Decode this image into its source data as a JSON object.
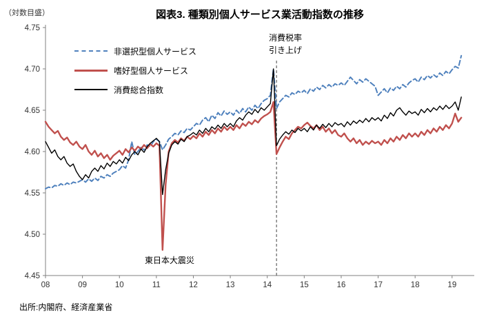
{
  "title": "図表3. 種類別個人サービス業活動指数の推移",
  "y_unit_label": "（対数目盛）",
  "source": "出所:内閣府、経済産業省",
  "annotations": {
    "tax_line": "消費税率\n引き上げ",
    "earthquake": "東日本大震災"
  },
  "legend": [
    {
      "label": "非選択型個人サービス",
      "color": "#4f81bd",
      "style": "dashed"
    },
    {
      "label": "嗜好型個人サービス",
      "color": "#c0504d",
      "style": "solid"
    },
    {
      "label": "消費総合指数",
      "color": "#000000",
      "style": "solid"
    }
  ],
  "chart_data": {
    "type": "line",
    "title": "図表3. 種類別個人サービス業活動指数の推移",
    "ylabel": "（対数目盛）",
    "xlabel": "",
    "grid": false,
    "legend_position": "upper-left-inside",
    "xlim": [
      2008,
      2019.6
    ],
    "ylim": [
      4.45,
      4.75
    ],
    "y_ticks": [
      4.45,
      4.5,
      4.55,
      4.6,
      4.65,
      4.7,
      4.75
    ],
    "x_tick_years": [
      2008,
      2009,
      2010,
      2011,
      2012,
      2013,
      2014,
      2015,
      2016,
      2017,
      2018,
      2019
    ],
    "x_tick_labels": [
      "08",
      "09",
      "10",
      "11",
      "12",
      "13",
      "14",
      "15",
      "16",
      "17",
      "18",
      "19"
    ],
    "x_start_year": 2008,
    "x_interval": "monthly",
    "event_lines": [
      {
        "x": 2014.25,
        "label": "消費税率引き上げ",
        "style": "dashed"
      }
    ],
    "event_labels": [
      {
        "x": 2011.2,
        "y": 4.468,
        "label": "東日本大震災"
      }
    ],
    "series": [
      {
        "name": "非選択型個人サービス",
        "color": "#4f81bd",
        "dash": true,
        "width": 2,
        "values": [
          4.555,
          4.557,
          4.556,
          4.559,
          4.558,
          4.561,
          4.559,
          4.562,
          4.56,
          4.563,
          4.562,
          4.564,
          4.566,
          4.563,
          4.567,
          4.564,
          4.568,
          4.565,
          4.57,
          4.568,
          4.572,
          4.57,
          4.574,
          4.576,
          4.578,
          4.583,
          4.58,
          4.59,
          4.612,
          4.596,
          4.6,
          4.605,
          4.602,
          4.608,
          4.606,
          4.612,
          4.615,
          4.612,
          4.602,
          4.608,
          4.615,
          4.618,
          4.622,
          4.62,
          4.625,
          4.623,
          4.628,
          4.626,
          4.63,
          4.634,
          4.632,
          4.638,
          4.641,
          4.636,
          4.644,
          4.64,
          4.647,
          4.643,
          4.649,
          4.645,
          4.648,
          4.644,
          4.65,
          4.646,
          4.652,
          4.648,
          4.654,
          4.65,
          4.656,
          4.652,
          4.658,
          4.662,
          4.664,
          4.668,
          4.7,
          4.652,
          4.66,
          4.664,
          4.668,
          4.666,
          4.671,
          4.669,
          4.673,
          4.671,
          4.674,
          4.67,
          4.676,
          4.673,
          4.678,
          4.675,
          4.68,
          4.677,
          4.681,
          4.678,
          4.682,
          4.68,
          4.683,
          4.68,
          4.685,
          4.69,
          4.686,
          4.682,
          4.687,
          4.684,
          4.688,
          4.685,
          4.682,
          4.679,
          4.668,
          4.672,
          4.676,
          4.671,
          4.677,
          4.674,
          4.679,
          4.676,
          4.681,
          4.678,
          4.683,
          4.686,
          4.688,
          4.684,
          4.69,
          4.687,
          4.692,
          4.689,
          4.693,
          4.69,
          4.695,
          4.692,
          4.697,
          4.694,
          4.699,
          4.703,
          4.701,
          4.716
        ]
      },
      {
        "name": "嗜好型個人サービス",
        "color": "#c0504d",
        "dash": false,
        "width": 2.4,
        "values": [
          4.636,
          4.63,
          4.626,
          4.622,
          4.625,
          4.618,
          4.614,
          4.617,
          4.611,
          4.608,
          4.612,
          4.606,
          4.603,
          4.608,
          4.6,
          4.596,
          4.601,
          4.594,
          4.598,
          4.592,
          4.596,
          4.59,
          4.595,
          4.598,
          4.601,
          4.596,
          4.603,
          4.599,
          4.605,
          4.601,
          4.606,
          4.603,
          4.608,
          4.604,
          4.609,
          4.606,
          4.61,
          4.607,
          4.481,
          4.56,
          4.6,
          4.61,
          4.614,
          4.611,
          4.616,
          4.613,
          4.618,
          4.615,
          4.619,
          4.616,
          4.622,
          4.618,
          4.624,
          4.62,
          4.626,
          4.622,
          4.628,
          4.624,
          4.63,
          4.626,
          4.63,
          4.626,
          4.632,
          4.628,
          4.634,
          4.631,
          4.636,
          4.633,
          4.638,
          4.635,
          4.64,
          4.643,
          4.645,
          4.648,
          4.66,
          4.597,
          4.605,
          4.612,
          4.618,
          4.615,
          4.622,
          4.626,
          4.63,
          4.628,
          4.632,
          4.635,
          4.631,
          4.628,
          4.632,
          4.626,
          4.63,
          4.624,
          4.628,
          4.622,
          4.626,
          4.62,
          4.618,
          4.622,
          4.616,
          4.612,
          4.616,
          4.61,
          4.614,
          4.608,
          4.612,
          4.609,
          4.613,
          4.61,
          4.612,
          4.608,
          4.614,
          4.61,
          4.616,
          4.612,
          4.618,
          4.614,
          4.62,
          4.616,
          4.622,
          4.618,
          4.622,
          4.618,
          4.624,
          4.62,
          4.626,
          4.622,
          4.628,
          4.624,
          4.63,
          4.626,
          4.632,
          4.628,
          4.634,
          4.646,
          4.636,
          4.641
        ]
      },
      {
        "name": "消費総合指数",
        "color": "#000000",
        "dash": false,
        "width": 1.4,
        "values": [
          4.612,
          4.605,
          4.598,
          4.602,
          4.594,
          4.59,
          4.594,
          4.586,
          4.582,
          4.585,
          4.576,
          4.57,
          4.566,
          4.572,
          4.568,
          4.576,
          4.58,
          4.576,
          4.583,
          4.579,
          4.586,
          4.582,
          4.588,
          4.585,
          4.59,
          4.586,
          4.593,
          4.589,
          4.596,
          4.6,
          4.596,
          4.603,
          4.599,
          4.606,
          4.61,
          4.613,
          4.616,
          4.612,
          4.548,
          4.578,
          4.598,
          4.608,
          4.612,
          4.609,
          4.615,
          4.612,
          4.618,
          4.62,
          4.623,
          4.62,
          4.626,
          4.622,
          4.628,
          4.624,
          4.63,
          4.627,
          4.632,
          4.628,
          4.634,
          4.63,
          4.634,
          4.63,
          4.637,
          4.641,
          4.638,
          4.644,
          4.648,
          4.645,
          4.651,
          4.647,
          4.653,
          4.65,
          4.654,
          4.658,
          4.7,
          4.607,
          4.615,
          4.62,
          4.624,
          4.621,
          4.626,
          4.623,
          4.628,
          4.625,
          4.628,
          4.624,
          4.63,
          4.626,
          4.632,
          4.628,
          4.633,
          4.629,
          4.634,
          4.63,
          4.635,
          4.632,
          4.634,
          4.63,
          4.636,
          4.632,
          4.637,
          4.634,
          4.638,
          4.635,
          4.64,
          4.636,
          4.641,
          4.638,
          4.641,
          4.637,
          4.644,
          4.64,
          4.647,
          4.643,
          4.65,
          4.653,
          4.648,
          4.644,
          4.649,
          4.646,
          4.648,
          4.644,
          4.651,
          4.647,
          4.652,
          4.648,
          4.653,
          4.65,
          4.655,
          4.651,
          4.656,
          4.652,
          4.655,
          4.66,
          4.65,
          4.666
        ]
      }
    ]
  }
}
